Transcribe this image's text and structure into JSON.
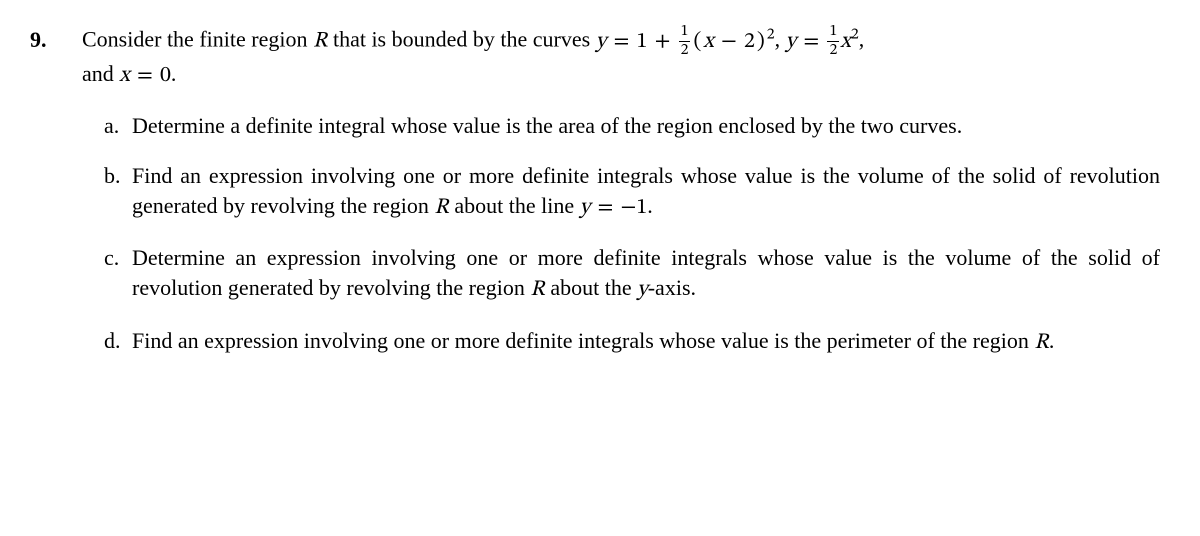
{
  "problem": {
    "number": "9.",
    "stem_pre": "Consider the finite region ",
    "stem_R": "R",
    "stem_mid1": " that is bounded by the curves ",
    "eq1_y": "y",
    "eq1_eq": " = ",
    "eq1_1": "1",
    "eq1_plus": " + ",
    "frac1_n": "1",
    "frac1_d": "2",
    "eq1_lp": "(",
    "eq1_x": "x",
    "eq1_minus": " − ",
    "eq1_2": "2",
    "eq1_rp": ")",
    "eq1_sq": "2",
    "stem_comma1": ", ",
    "eq2_y": "y",
    "eq2_eq": " = ",
    "frac2_n": "1",
    "frac2_d": "2",
    "eq2_x": "x",
    "eq2_sq": "2",
    "stem_comma2": ",",
    "stem_and": "and ",
    "eq3_x": "x",
    "eq3_eq": " = ",
    "eq3_0": "0",
    "stem_period": ".",
    "parts": {
      "a": {
        "label": "a.",
        "text": "Determine a definite integral whose value is the area of the region enclosed by the two curves."
      },
      "b": {
        "label": "b.",
        "pre": "Find an expression involving one or more definite integrals whose value is the volume of the solid of revolution generated by revolving the region ",
        "R": "R",
        "mid": " about the line ",
        "eq_y": "y",
        "eq_eq": " = ",
        "eq_val": "−1",
        "post": "."
      },
      "c": {
        "label": "c.",
        "pre": "Determine an expression involving one or more definite integrals whose value is the volume of the solid of revolution generated by revolving the region ",
        "R": "R",
        "mid": " about the ",
        "axis": "y",
        "post": "-axis."
      },
      "d": {
        "label": "d.",
        "pre": "Find an expression involving one or more definite integrals whose value is the perimeter of the region ",
        "R": "R",
        "post": "."
      }
    }
  }
}
